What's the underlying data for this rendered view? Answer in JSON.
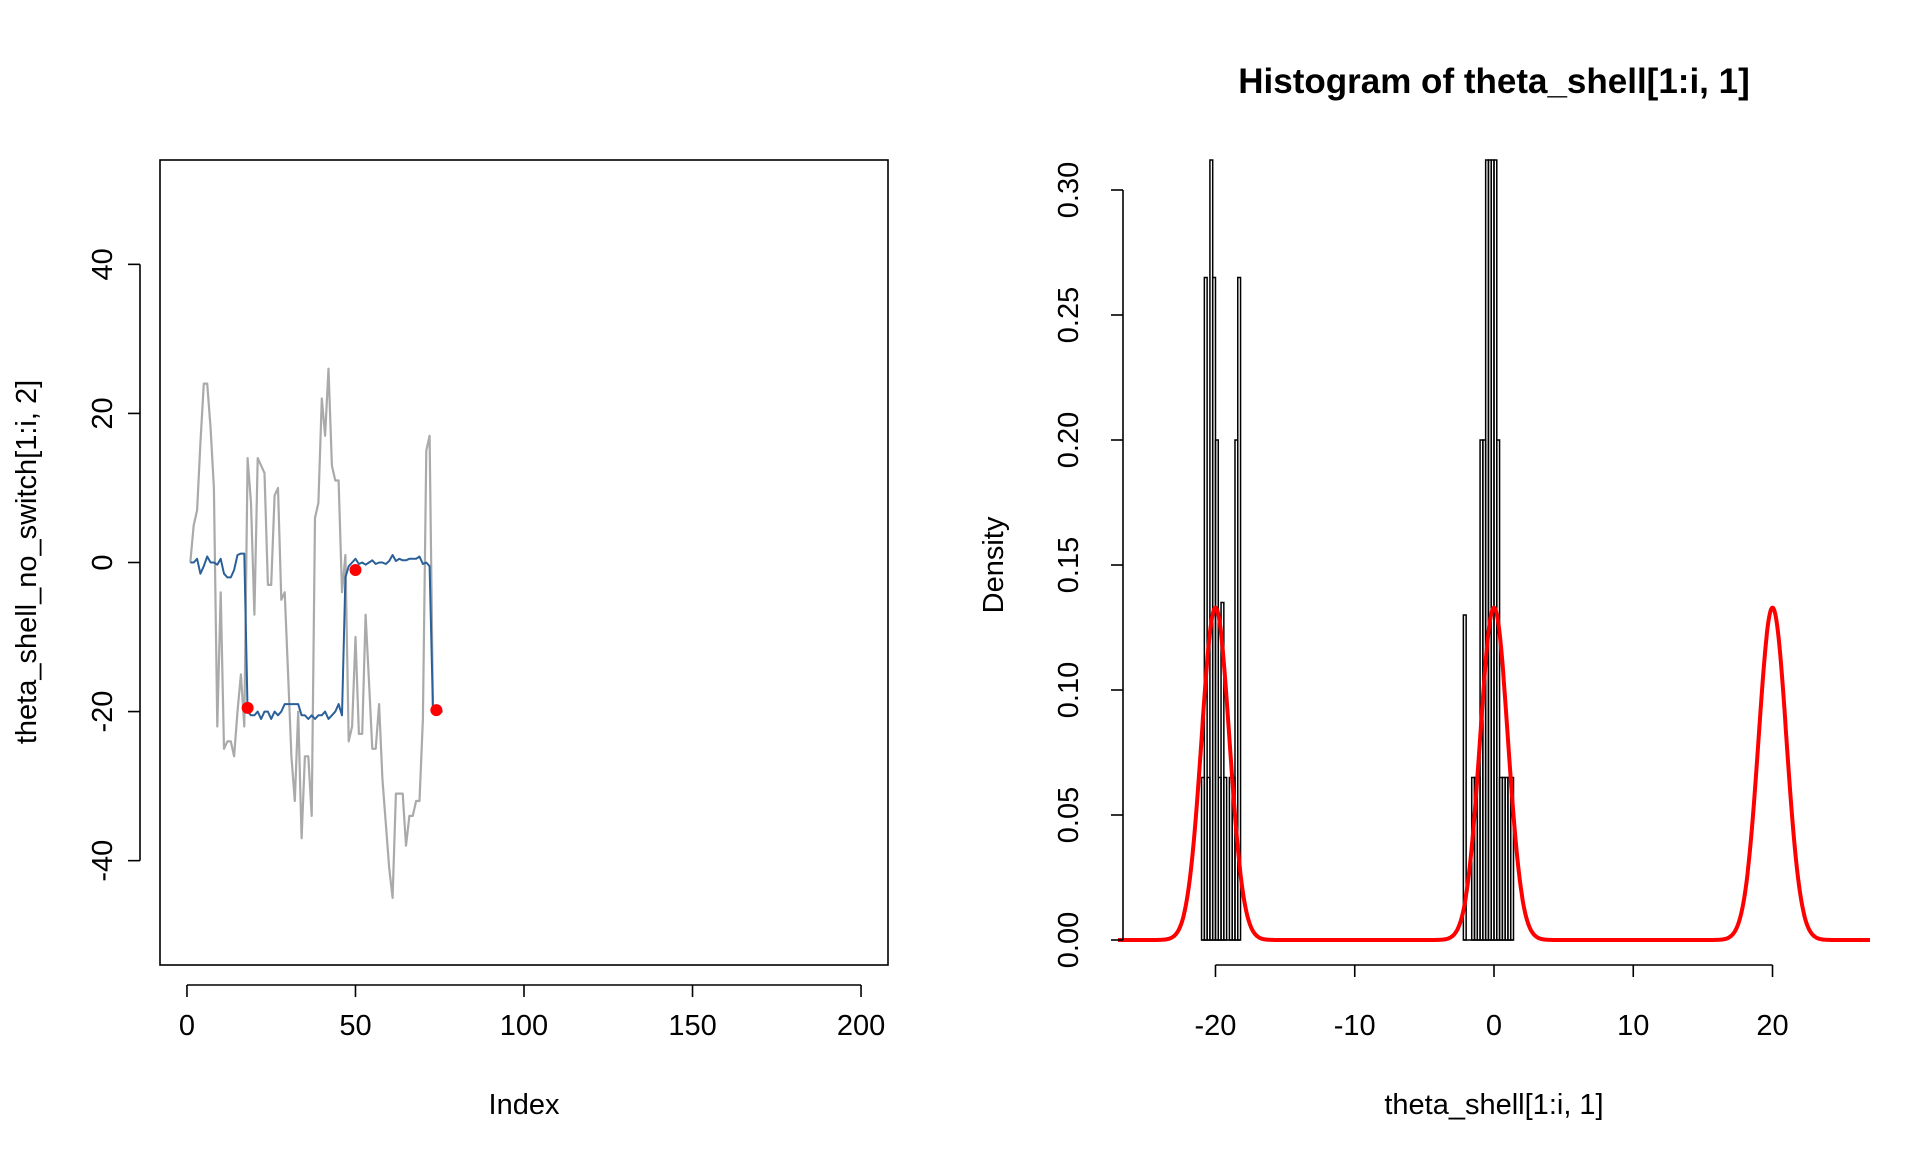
{
  "chart_data": [
    {
      "type": "line",
      "title": "",
      "xlabel": "Index",
      "ylabel": "theta_shell_no_switch[1:i, 2]",
      "xlim": [
        -8,
        208
      ],
      "ylim": [
        -54,
        54
      ],
      "xticks": [
        0,
        50,
        100,
        150,
        200
      ],
      "yticks": [
        -40,
        -20,
        0,
        20,
        40
      ],
      "xtick_labels": [
        "0",
        "50",
        "100",
        "150",
        "200"
      ],
      "ytick_labels": [
        "-40",
        "-20",
        "0",
        "20",
        "40"
      ],
      "grid": false,
      "series": [
        {
          "color": "#aaaaaa",
          "x": [
            1,
            2,
            3,
            4,
            5,
            6,
            7,
            8,
            9,
            10,
            11,
            12,
            13,
            14,
            15,
            16,
            17,
            18,
            19,
            20,
            21,
            22,
            23,
            24,
            25,
            26,
            27,
            28,
            29,
            30,
            31,
            32,
            33,
            34,
            35,
            36,
            37,
            38,
            39,
            40,
            41,
            42,
            43,
            44,
            45,
            46,
            47,
            48,
            49,
            50,
            51,
            52,
            53,
            54,
            55,
            56,
            57,
            58,
            59,
            60,
            61,
            62,
            63,
            64,
            65,
            66,
            67,
            68,
            69,
            70,
            71,
            72,
            73,
            74,
            75,
            76
          ],
          "values": [
            0,
            5,
            7,
            16,
            24,
            24,
            18,
            10,
            -22,
            -4,
            -25,
            -24,
            -24,
            -26,
            -20,
            -15,
            -22,
            14,
            8,
            -7,
            14,
            13,
            12,
            -3,
            -3,
            9,
            10,
            -5,
            -4,
            -15,
            -26,
            -32,
            -20,
            -37,
            -26,
            -26,
            -34,
            6,
            8,
            22,
            17,
            26,
            13,
            11,
            11,
            -4,
            1,
            -24,
            -22,
            -10,
            -23,
            -23,
            -7,
            -16,
            -25,
            -25,
            -19,
            -29,
            -35,
            -41,
            -45,
            -31,
            -31,
            -31,
            -38,
            -34,
            -34,
            -32,
            -32,
            -21,
            15,
            17,
            -20,
            -20,
            -20,
            -20
          ]
        },
        {
          "color": "#2a6099",
          "x": [
            1,
            2,
            3,
            4,
            5,
            6,
            7,
            8,
            9,
            10,
            11,
            12,
            13,
            14,
            15,
            16,
            17,
            18,
            19,
            20,
            21,
            22,
            23,
            24,
            25,
            26,
            27,
            28,
            29,
            30,
            31,
            32,
            33,
            34,
            35,
            36,
            37,
            38,
            39,
            40,
            41,
            42,
            43,
            44,
            45,
            46,
            47,
            48,
            49,
            50,
            51,
            52,
            53,
            54,
            55,
            56,
            57,
            58,
            59,
            60,
            61,
            62,
            63,
            64,
            65,
            66,
            67,
            68,
            69,
            70,
            71,
            72,
            73,
            74
          ],
          "values": [
            0,
            0,
            0.5,
            -1.5,
            -0.5,
            0.8,
            0,
            0,
            -0.3,
            0.5,
            -1.5,
            -2,
            -2,
            -1,
            1,
            1.2,
            1.2,
            -20,
            -20.5,
            -20.5,
            -20,
            -21,
            -20,
            -20,
            -21,
            -20,
            -20.5,
            -20,
            -19,
            -19,
            -19,
            -19,
            -19,
            -20.5,
            -20.5,
            -21,
            -20.5,
            -21,
            -20.5,
            -20.5,
            -20,
            -21,
            -20.5,
            -20,
            -19,
            -20.5,
            -2,
            -0.5,
            0,
            0.5,
            -0.2,
            0,
            -0.3,
            0,
            0.3,
            -0.2,
            0,
            0,
            -0.2,
            0.2,
            1,
            0.2,
            0.5,
            0.3,
            0.3,
            0.5,
            0.5,
            0.5,
            0.8,
            -0.2,
            0,
            -0.5,
            -20,
            -20
          ]
        }
      ],
      "points": {
        "color": "#ff0000",
        "x": [
          18,
          50,
          74
        ],
        "values": [
          -19.5,
          -1,
          -19.8
        ]
      }
    },
    {
      "type": "histogram",
      "title": "Histogram of theta_shell[1:i, 1]",
      "xlabel": "theta_shell[1:i, 1]",
      "ylabel": "Density",
      "xlim": [
        -27,
        27
      ],
      "ylim": [
        0,
        0.3
      ],
      "xticks": [
        -20,
        -10,
        0,
        10,
        20
      ],
      "yticks": [
        0,
        0.05,
        0.1,
        0.15,
        0.2,
        0.25,
        0.3
      ],
      "xtick_labels": [
        "-20",
        "-10",
        "0",
        "10",
        "20"
      ],
      "ytick_labels": [
        "0.00",
        "0.05",
        "0.10",
        "0.15",
        "0.20",
        "0.25",
        "0.30"
      ],
      "grid": false,
      "bins": {
        "left_edges": [
          -21.0,
          -20.8,
          -20.6,
          -20.4,
          -20.2,
          -20.0,
          -19.8,
          -19.6,
          -19.4,
          -19.2,
          -19.0,
          -18.8,
          -18.6,
          -18.4,
          -2.2,
          -2.0,
          -1.8,
          -1.6,
          -1.4,
          -1.2,
          -1.0,
          -0.8,
          -0.6,
          -0.4,
          -0.2,
          0.0,
          0.2,
          0.4,
          0.6,
          0.8,
          1.0,
          1.2
        ],
        "width": 0.2,
        "density": [
          0.065,
          0.265,
          0.065,
          0.32,
          0.265,
          0.2,
          0.065,
          0.135,
          0.065,
          0,
          0.065,
          0.065,
          0.2,
          0.265,
          0.13,
          0,
          0,
          0.065,
          0.065,
          0.065,
          0.2,
          0.2,
          0.32,
          0.32,
          0.32,
          0.32,
          0.2,
          0.065,
          0.065,
          0.065,
          0.065,
          0.065
        ]
      },
      "density_curve": {
        "color": "#ff0000",
        "type": "mixture of three normals",
        "means": [
          -20,
          0,
          20
        ],
        "sd": 1,
        "weights": [
          0.3333,
          0.3333,
          0.3333
        ]
      }
    }
  ]
}
